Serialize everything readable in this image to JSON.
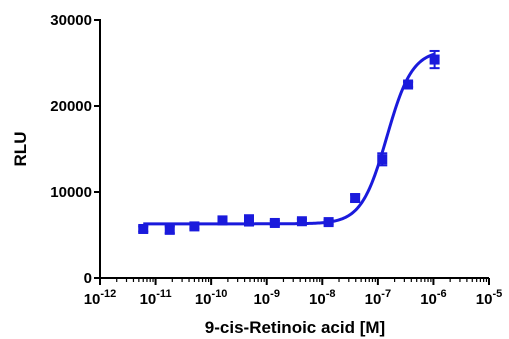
{
  "chart_data": {
    "type": "scatter",
    "xlabel": "9-cis-Retinoic acid [M]",
    "ylabel": "RLU",
    "x_scale": "log",
    "xlim": [
      1e-12,
      1e-05
    ],
    "ylim": [
      0,
      30000
    ],
    "x_tick_labels": [
      {
        "base": "10",
        "exp": "-12"
      },
      {
        "base": "10",
        "exp": "-11"
      },
      {
        "base": "10",
        "exp": "-10"
      },
      {
        "base": "10",
        "exp": "-9"
      },
      {
        "base": "10",
        "exp": "-8"
      },
      {
        "base": "10",
        "exp": "-7"
      },
      {
        "base": "10",
        "exp": "-6"
      },
      {
        "base": "10",
        "exp": "-5"
      }
    ],
    "y_ticks": [
      0,
      10000,
      20000,
      30000
    ],
    "y_tick_labels": [
      "0",
      "10000",
      "20000",
      "30000"
    ],
    "grid": false,
    "series": [
      {
        "color": "#1a1adc",
        "marker": "square",
        "points": [
          {
            "x": 6e-12,
            "y": 5700,
            "err": 300
          },
          {
            "x": 1.8e-11,
            "y": 5600,
            "err": 400
          },
          {
            "x": 5e-11,
            "y": 6000,
            "err": 250
          },
          {
            "x": 1.6e-10,
            "y": 6700,
            "err": 300
          },
          {
            "x": 4.8e-10,
            "y": 6700,
            "err": 600
          },
          {
            "x": 1.4e-09,
            "y": 6400,
            "err": 250
          },
          {
            "x": 4.3e-09,
            "y": 6600,
            "err": 250
          },
          {
            "x": 1.3e-08,
            "y": 6500,
            "err": 250
          },
          {
            "x": 3.9e-08,
            "y": 9300,
            "err": 400
          },
          {
            "x": 1.2e-07,
            "y": 13800,
            "err": 700
          },
          {
            "x": 3.5e-07,
            "y": 22500,
            "err": 300
          },
          {
            "x": 1.05e-06,
            "y": 25400,
            "err": 1000
          }
        ],
        "fit": {
          "model": "4PL",
          "bottom": 6300,
          "top": 26500,
          "ec50": 1.45e-07,
          "hill": 1.9,
          "x_range": [
            6e-12,
            1.05e-06
          ]
        }
      }
    ]
  }
}
